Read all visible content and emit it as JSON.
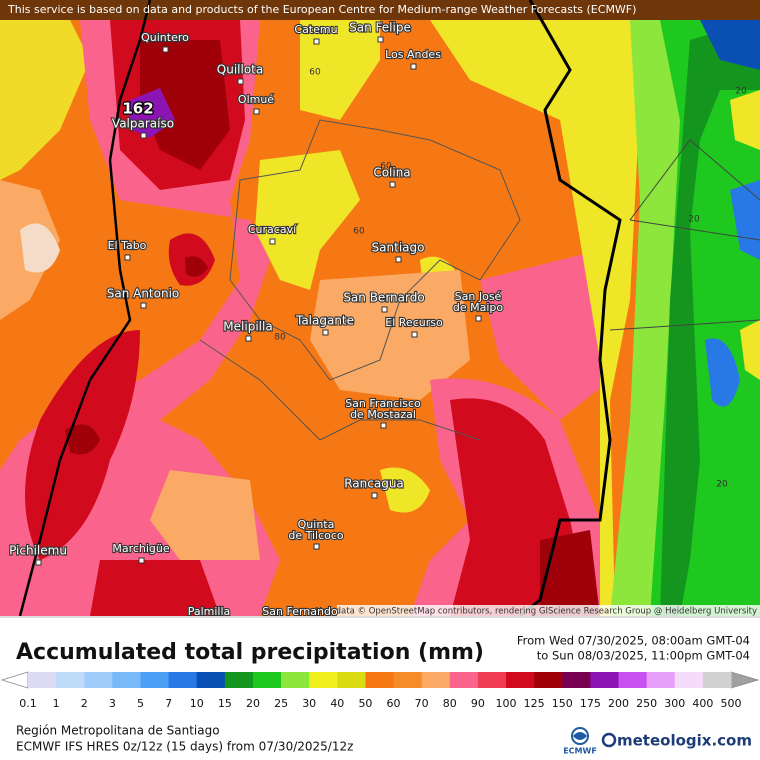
{
  "attribution_top": "This service is based on data and products of the European Centre for Medium-range Weather Forecasts (ECMWF)",
  "map_credit": "Map data © OpenStreetMap contributors, rendering GIScience Research Group @ Heidelberg University",
  "places": [
    "Quintero",
    "San Felipe",
    "Catemu",
    "Los Andes",
    "Quillota",
    "Valparaíso",
    "Olmué",
    "Colina",
    "Curacaví",
    "Santiago",
    "El Tabo",
    "San Antonio",
    "San Bernardo",
    [
      "San José",
      "de Maipo"
    ],
    "Melipilla",
    "Talagante",
    "El Recurso",
    [
      "San Francisco",
      "de Mostazal"
    ],
    "Rancagua",
    [
      "Quinta",
      "de Tilcoco"
    ],
    "Pichilemu",
    "Marchigüe",
    "Palmilla",
    "San Fernando"
  ],
  "map_labels": [
    "162",
    "60",
    "60",
    "60",
    "80",
    "20",
    "20",
    "20"
  ],
  "title": "Accumulated total precipitation (mm)",
  "period": {
    "from": "From Wed 07/30/2025, 08:00am GMT-04",
    "to": "to Sun 08/03/2025, 11:00pm GMT-04"
  },
  "colorbar": {
    "labels": [
      "0.1",
      "1",
      "2",
      "3",
      "5",
      "7",
      "10",
      "15",
      "20",
      "25",
      "30",
      "40",
      "50",
      "60",
      "70",
      "80",
      "90",
      "100",
      "125",
      "150",
      "175",
      "200",
      "250",
      "300",
      "400",
      "500"
    ],
    "low_color": "#ffffff",
    "high_color": "#a0a0a0",
    "colors": [
      "#dcdcf5",
      "#bedcfa",
      "#a0cdfa",
      "#78b9fa",
      "#4ba0f5",
      "#2878e6",
      "#0a50b4",
      "#14961e",
      "#1ec81e",
      "#8ce63c",
      "#f0f01e",
      "#dcdc14",
      "#f57814",
      "#f58c28",
      "#faaa64",
      "#fa648c",
      "#f03c50",
      "#d20a1e",
      "#a0000a",
      "#780050",
      "#8c14b4",
      "#c850f0",
      "#e6a0fa",
      "#f5dcfa",
      "#d2d2d2"
    ]
  },
  "region": "Región Metropolitana de Santiago",
  "model": "ECMWF IFS HRES 0z/12z (15 days) from 07/30/2025/12z",
  "logos": {
    "ecmwf": "ECMWF",
    "brand": "meteologix.com"
  }
}
